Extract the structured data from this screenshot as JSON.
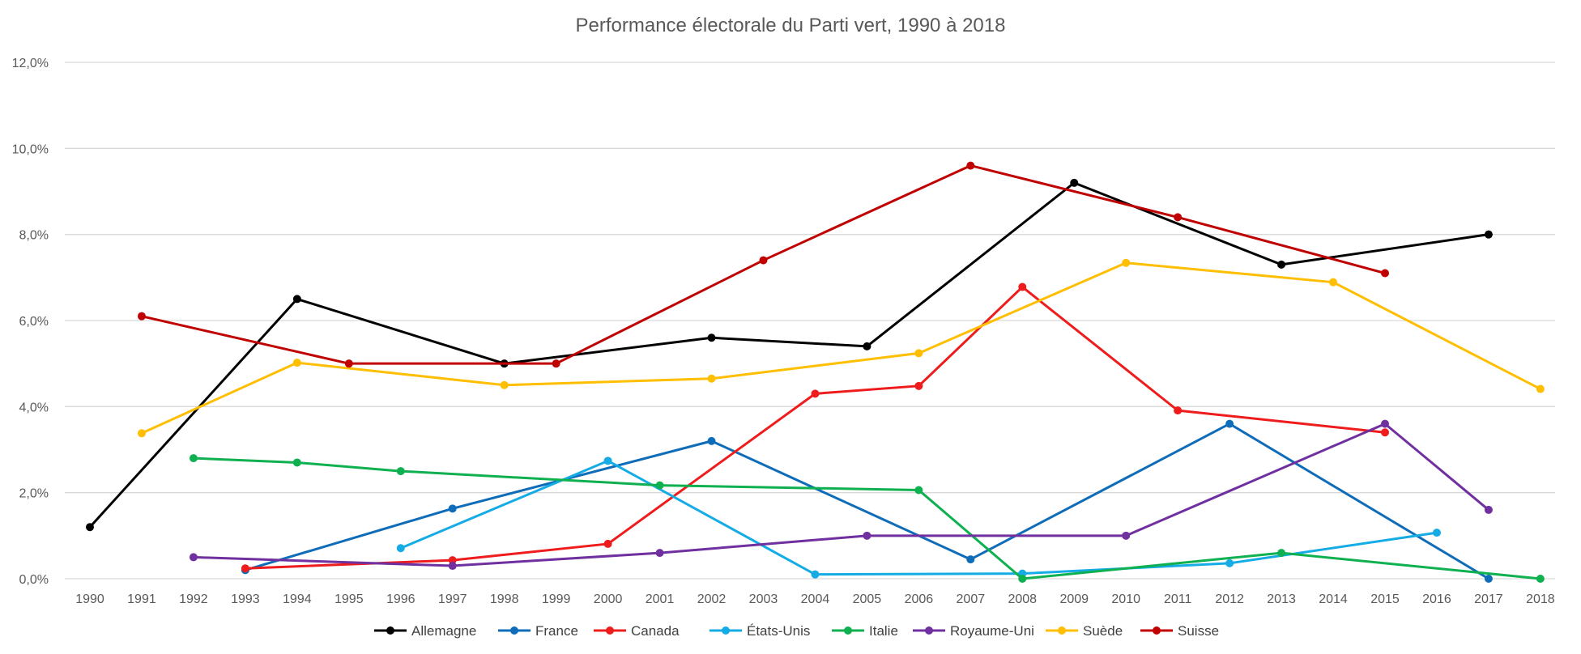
{
  "chart_data": {
    "type": "line",
    "title": "Performance électorale du Parti vert, 1990 à 2018",
    "xlabel": "",
    "ylabel": "",
    "x_range": [
      1990,
      2018
    ],
    "ylim": [
      0,
      12
    ],
    "y_ticks": [
      0,
      2,
      4,
      6,
      8,
      10,
      12
    ],
    "y_tick_labels": [
      "0,0%",
      "2,0%",
      "4,0%",
      "6,0%",
      "8,0%",
      "10,0%",
      "12,0%"
    ],
    "x_ticks": [
      "1990",
      "1991",
      "1992",
      "1993",
      "1994",
      "1995",
      "1996",
      "1997",
      "1998",
      "1999",
      "2000",
      "2001",
      "2002",
      "2003",
      "2004",
      "2005",
      "2006",
      "2007",
      "2008",
      "2009",
      "2010",
      "2011",
      "2012",
      "2013",
      "2014",
      "2015",
      "2016",
      "2017",
      "2018"
    ],
    "grid": "horizontal",
    "legend_position": "bottom",
    "series": [
      {
        "name": "Allemagne",
        "color": "#000000",
        "points": [
          [
            1990,
            1.2
          ],
          [
            1994,
            6.5
          ],
          [
            1998,
            5.0
          ],
          [
            2002,
            5.6
          ],
          [
            2005,
            5.4
          ],
          [
            2009,
            9.2
          ],
          [
            2013,
            7.3
          ],
          [
            2017,
            8.0
          ]
        ]
      },
      {
        "name": "France",
        "color": "#0E6CB8",
        "points": [
          [
            1993,
            0.2
          ],
          [
            1997,
            1.63
          ],
          [
            2002,
            3.2
          ],
          [
            2007,
            0.45
          ],
          [
            2012,
            3.6
          ],
          [
            2017,
            0.0
          ]
        ]
      },
      {
        "name": "Canada",
        "color": "#EE1C1C",
        "points": [
          [
            1993,
            0.24
          ],
          [
            1997,
            0.43
          ],
          [
            2000,
            0.81
          ],
          [
            2004,
            4.3
          ],
          [
            2006,
            4.48
          ],
          [
            2008,
            6.78
          ],
          [
            2011,
            3.91
          ],
          [
            2015,
            3.4
          ]
        ]
      },
      {
        "name": "États-Unis",
        "color": "#15ACE6",
        "points": [
          [
            1996,
            0.71
          ],
          [
            2000,
            2.74
          ],
          [
            2004,
            0.1
          ],
          [
            2008,
            0.12
          ],
          [
            2012,
            0.36
          ],
          [
            2016,
            1.07
          ]
        ]
      },
      {
        "name": "Italie",
        "color": "#0FB050",
        "points": [
          [
            1992,
            2.8
          ],
          [
            1994,
            2.7
          ],
          [
            1996,
            2.5
          ],
          [
            2001,
            2.17
          ],
          [
            2006,
            2.06
          ],
          [
            2008,
            0.0
          ],
          [
            2013,
            0.6
          ],
          [
            2018,
            0.0
          ]
        ]
      },
      {
        "name": "Royaume-Uni",
        "color": "#7030A0",
        "points": [
          [
            1992,
            0.5
          ],
          [
            1997,
            0.3
          ],
          [
            2001,
            0.6
          ],
          [
            2005,
            1.0
          ],
          [
            2010,
            1.0
          ],
          [
            2015,
            3.6
          ],
          [
            2017,
            1.6
          ]
        ]
      },
      {
        "name": "Suède",
        "color": "#FFBE00",
        "points": [
          [
            1991,
            3.38
          ],
          [
            1994,
            5.02
          ],
          [
            1998,
            4.5
          ],
          [
            2002,
            4.65
          ],
          [
            2006,
            5.24
          ],
          [
            2010,
            7.34
          ],
          [
            2014,
            6.89
          ],
          [
            2018,
            4.41
          ]
        ]
      },
      {
        "name": "Suisse",
        "color": "#C00000",
        "points": [
          [
            1991,
            6.1
          ],
          [
            1995,
            5.0
          ],
          [
            1999,
            5.0
          ],
          [
            2003,
            7.4
          ],
          [
            2007,
            9.6
          ],
          [
            2011,
            8.4
          ],
          [
            2015,
            7.1
          ]
        ]
      }
    ]
  }
}
